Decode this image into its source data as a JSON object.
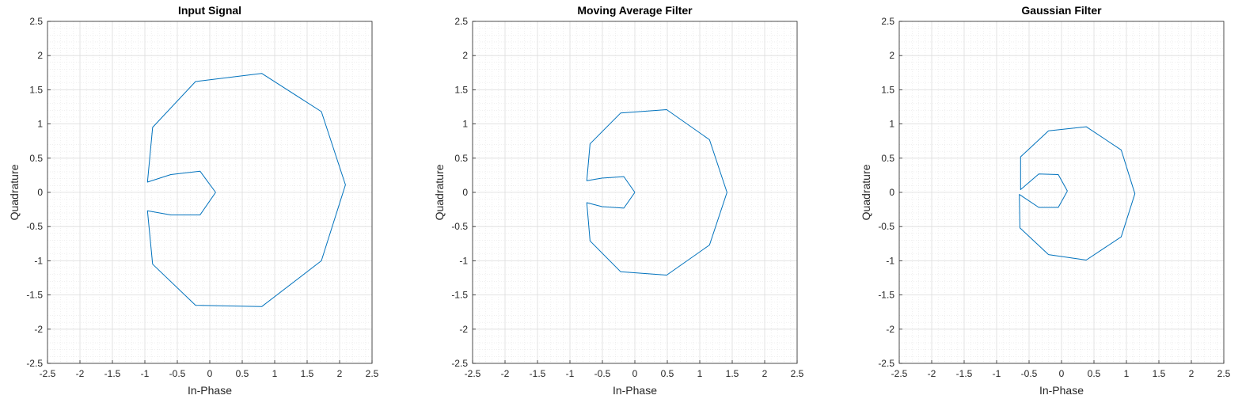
{
  "chart_data": [
    {
      "type": "line",
      "title": "Input Signal",
      "xlabel": "In-Phase",
      "ylabel": "Quadrature",
      "xlim": [
        -2.5,
        2.5
      ],
      "ylim": [
        -2.5,
        2.5
      ],
      "xticks": [
        "-2.5",
        "-2",
        "-1.5",
        "-1",
        "-0.5",
        "0",
        "0.5",
        "1",
        "1.5",
        "2",
        "2.5"
      ],
      "yticks": [
        "-2.5",
        "-2",
        "-1.5",
        "-1",
        "-0.5",
        "0",
        "0.5",
        "1",
        "1.5",
        "2",
        "2.5"
      ],
      "grid": true,
      "minor_grid": true,
      "color": "#0072BD",
      "series": [
        {
          "x": [
            0.09,
            -0.15,
            -0.6,
            -0.96,
            -0.88,
            -0.22,
            0.8,
            1.72,
            2.09,
            1.72,
            0.8,
            -0.22,
            -0.88,
            -0.96,
            -0.6,
            -0.15,
            0.09
          ],
          "y": [
            0.0,
            0.31,
            0.26,
            0.15,
            0.95,
            1.62,
            1.74,
            1.18,
            0.11,
            -1.0,
            -1.67,
            -1.65,
            -1.05,
            -0.27,
            -0.33,
            -0.33,
            0.0
          ]
        }
      ]
    },
    {
      "type": "line",
      "title": "Moving Average Filter",
      "xlabel": "In-Phase",
      "ylabel": "Quadrature",
      "xlim": [
        -2.5,
        2.5
      ],
      "ylim": [
        -2.5,
        2.5
      ],
      "xticks": [
        "-2.5",
        "-2",
        "-1.5",
        "-1",
        "-0.5",
        "0",
        "0.5",
        "1",
        "1.5",
        "2",
        "2.5"
      ],
      "yticks": [
        "-2.5",
        "-2",
        "-1.5",
        "-1",
        "-0.5",
        "0",
        "0.5",
        "1",
        "1.5",
        "2",
        "2.5"
      ],
      "grid": true,
      "minor_grid": true,
      "color": "#0072BD",
      "series": [
        {
          "x": [
            0.0,
            -0.17,
            -0.5,
            -0.74,
            -0.69,
            -0.22,
            0.49,
            1.15,
            1.42,
            1.15,
            0.49,
            -0.22,
            -0.69,
            -0.74,
            -0.5,
            -0.17,
            0.0
          ],
          "y": [
            0.0,
            0.23,
            0.21,
            0.17,
            0.71,
            1.16,
            1.21,
            0.77,
            0.0,
            -0.77,
            -1.21,
            -1.16,
            -0.71,
            -0.15,
            -0.21,
            -0.23,
            0.0
          ]
        }
      ]
    },
    {
      "type": "line",
      "title": "Gaussian Filter",
      "xlabel": "In-Phase",
      "ylabel": "Quadrature",
      "xlim": [
        -2.5,
        2.5
      ],
      "ylim": [
        -2.5,
        2.5
      ],
      "xticks": [
        "-2.5",
        "-2",
        "-1.5",
        "-1",
        "-0.5",
        "0",
        "0.5",
        "1",
        "1.5",
        "2",
        "2.5"
      ],
      "yticks": [
        "-2.5",
        "-2",
        "-1.5",
        "-1",
        "-0.5",
        "0",
        "0.5",
        "1",
        "1.5",
        "2",
        "2.5"
      ],
      "grid": true,
      "minor_grid": true,
      "color": "#0072BD",
      "series": [
        {
          "x": [
            0.09,
            -0.05,
            -0.35,
            -0.63,
            -0.63,
            -0.2,
            0.38,
            0.92,
            1.13,
            0.92,
            0.38,
            -0.2,
            -0.64,
            -0.65,
            -0.35,
            -0.05,
            0.09
          ],
          "y": [
            0.02,
            0.26,
            0.27,
            0.04,
            0.52,
            0.9,
            0.96,
            0.62,
            -0.02,
            -0.65,
            -0.99,
            -0.91,
            -0.52,
            -0.03,
            -0.22,
            -0.22,
            0.02
          ]
        }
      ]
    }
  ]
}
